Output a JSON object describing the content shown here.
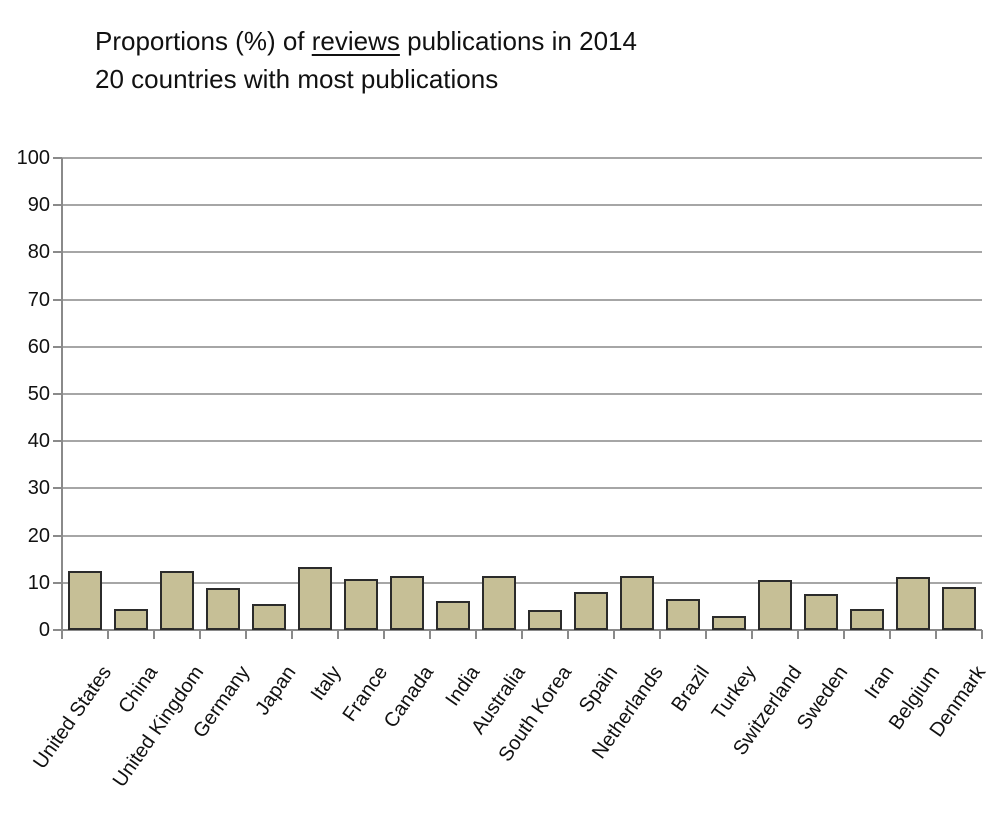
{
  "title": {
    "line1_prefix": "Proportions (%) of ",
    "line1_underlined": "reviews",
    "line1_suffix": " publications in 2014",
    "line2": "20 countries with most publications"
  },
  "chart_data": {
    "type": "bar",
    "title": "Proportions (%) of reviews publications in 2014",
    "subtitle": "20 countries with most publications",
    "categories": [
      "United States",
      "China",
      "United Kingdom",
      "Germany",
      "Japan",
      "Italy",
      "France",
      "Canada",
      "India",
      "Australia",
      "South Korea",
      "Spain",
      "Netherlands",
      "Brazil",
      "Turkey",
      "Switzerland",
      "Sweden",
      "Iran",
      "Belgium",
      "Denmark"
    ],
    "values": [
      12.5,
      4.5,
      12.4,
      9.0,
      5.5,
      13.3,
      10.9,
      11.5,
      6.1,
      11.5,
      4.3,
      8.1,
      11.5,
      6.6,
      3.0,
      10.5,
      7.6,
      4.5,
      11.2,
      9.1
    ],
    "xlabel": "",
    "ylabel": "",
    "ylim": [
      0,
      100
    ],
    "yticks": [
      0,
      10,
      20,
      30,
      40,
      50,
      60,
      70,
      80,
      90,
      100
    ],
    "grid": true,
    "legend": false,
    "colors": {
      "bar_fill": "#c6bf96",
      "bar_border": "#2b2b2b",
      "gridline": "#a6a6a6",
      "axis": "#8a8a8a",
      "text": "#111111"
    }
  }
}
